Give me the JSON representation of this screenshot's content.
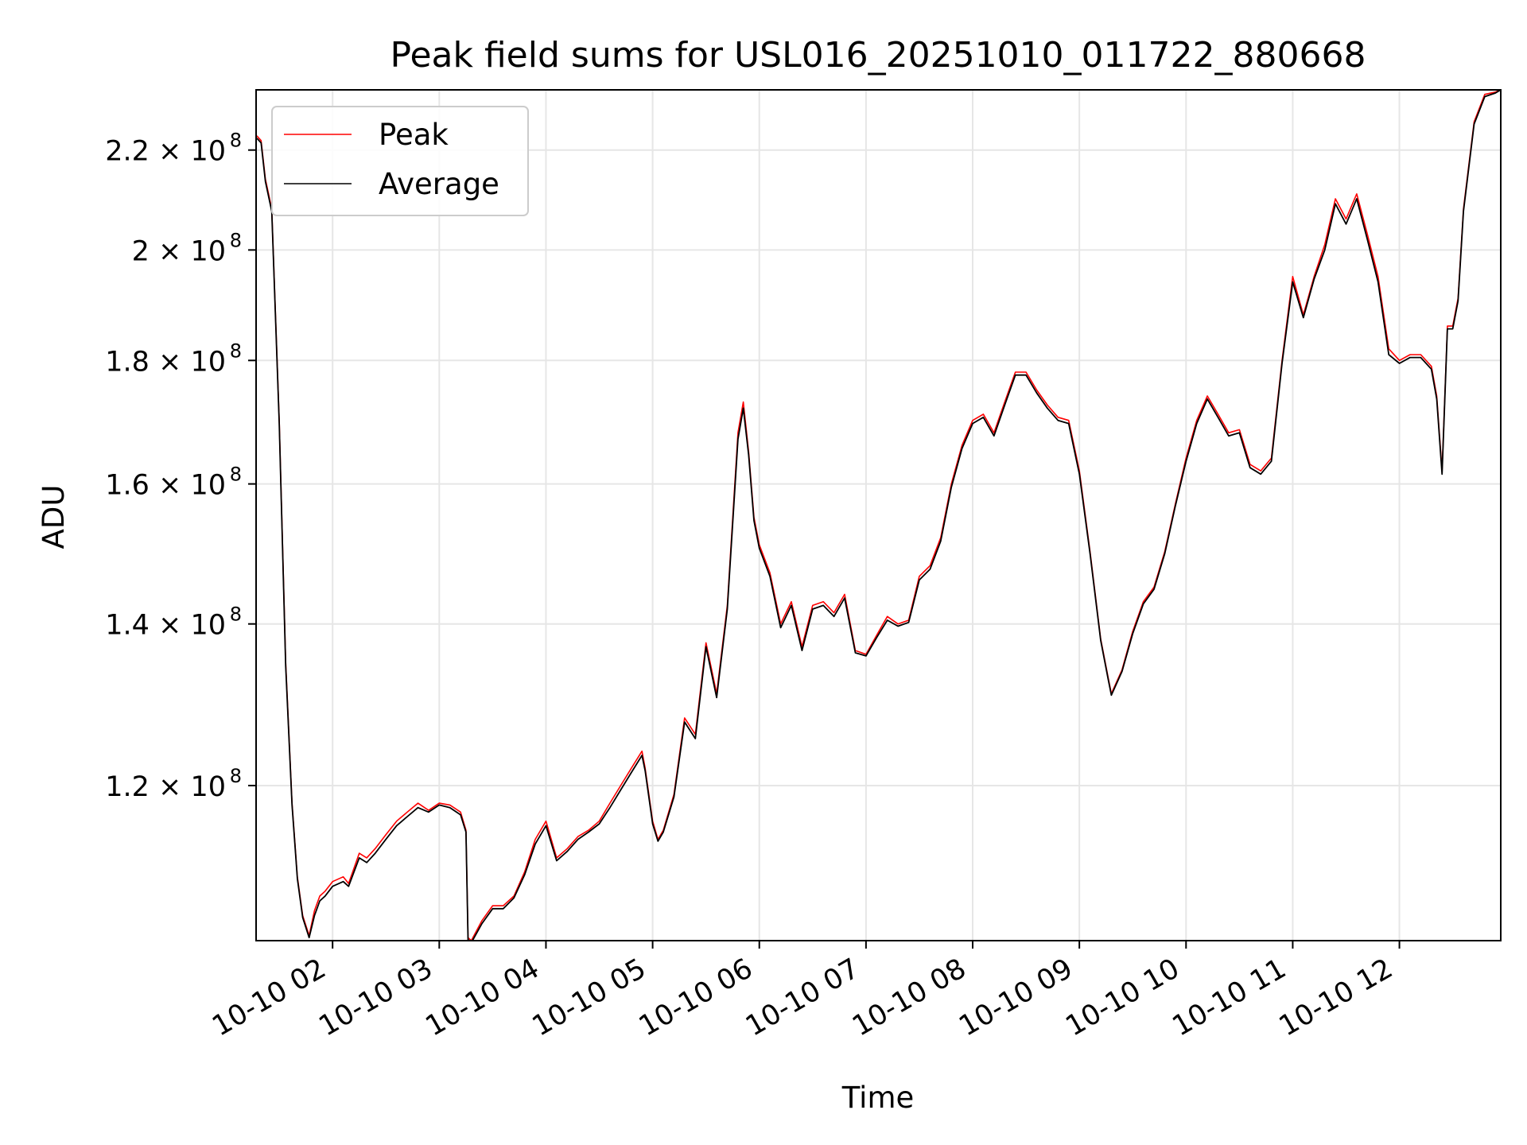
{
  "chart_data": {
    "type": "line",
    "title": "Peak field sums for USL016_20251010_011722_880668",
    "xlabel": "Time",
    "ylabel": "ADU",
    "yscale": "log",
    "grid": true,
    "legend_position": "upper-left",
    "xlim": [
      1.283,
      12.95
    ],
    "ylim": [
      103500000,
      233000000
    ],
    "x_ticks": [
      {
        "value": 2,
        "label": "10-10 02"
      },
      {
        "value": 3,
        "label": "10-10 03"
      },
      {
        "value": 4,
        "label": "10-10 04"
      },
      {
        "value": 5,
        "label": "10-10 05"
      },
      {
        "value": 6,
        "label": "10-10 06"
      },
      {
        "value": 7,
        "label": "10-10 07"
      },
      {
        "value": 8,
        "label": "10-10 08"
      },
      {
        "value": 9,
        "label": "10-10 09"
      },
      {
        "value": 10,
        "label": "10-10 10"
      },
      {
        "value": 11,
        "label": "10-10 11"
      },
      {
        "value": 12,
        "label": "10-10 12"
      }
    ],
    "y_ticks": [
      {
        "value": 120000000,
        "mantissa": "1.2",
        "exponent": "8"
      },
      {
        "value": 140000000,
        "mantissa": "1.4",
        "exponent": "8"
      },
      {
        "value": 160000000,
        "mantissa": "1.6",
        "exponent": "8"
      },
      {
        "value": 180000000,
        "mantissa": "1.8",
        "exponent": "8"
      },
      {
        "value": 200000000,
        "mantissa": "2",
        "exponent": "8"
      },
      {
        "value": 220000000,
        "mantissa": "2.2",
        "exponent": "8"
      }
    ],
    "x_unit": "hours (2025-10-10)",
    "series": [
      {
        "name": "Peak",
        "color": "#ff0000",
        "x": [
          1.29,
          1.33,
          1.37,
          1.43,
          1.5,
          1.56,
          1.62,
          1.67,
          1.72,
          1.78,
          1.83,
          1.88,
          1.93,
          2.0,
          2.1,
          2.15,
          2.25,
          2.32,
          2.4,
          2.5,
          2.6,
          2.7,
          2.8,
          2.9,
          3.0,
          3.1,
          3.2,
          3.25,
          3.27,
          3.3,
          3.4,
          3.5,
          3.6,
          3.7,
          3.8,
          3.9,
          4.0,
          4.1,
          4.2,
          4.3,
          4.4,
          4.5,
          4.6,
          4.7,
          4.8,
          4.9,
          4.93,
          5.0,
          5.05,
          5.1,
          5.2,
          5.3,
          5.4,
          5.5,
          5.6,
          5.7,
          5.8,
          5.85,
          5.9,
          5.95,
          6.0,
          6.1,
          6.2,
          6.3,
          6.4,
          6.5,
          6.6,
          6.7,
          6.8,
          6.9,
          7.0,
          7.1,
          7.2,
          7.3,
          7.4,
          7.5,
          7.6,
          7.7,
          7.8,
          7.9,
          8.0,
          8.1,
          8.2,
          8.3,
          8.4,
          8.5,
          8.6,
          8.7,
          8.8,
          8.9,
          9.0,
          9.1,
          9.2,
          9.27,
          9.3,
          9.4,
          9.5,
          9.6,
          9.7,
          9.8,
          9.9,
          10.0,
          10.1,
          10.2,
          10.3,
          10.4,
          10.5,
          10.6,
          10.7,
          10.8,
          10.9,
          11.0,
          11.1,
          11.2,
          11.3,
          11.4,
          11.5,
          11.6,
          11.7,
          11.8,
          11.9,
          12.0,
          12.1,
          12.2,
          12.3,
          12.35,
          12.4,
          12.45,
          12.5,
          12.55,
          12.6,
          12.7,
          12.8,
          12.9,
          12.95
        ],
        "values": [
          223000000,
          222000000,
          214000000,
          208000000,
          170000000,
          135000000,
          118000000,
          110000000,
          106000000,
          104000000,
          106500000,
          108000000,
          108500000,
          109500000,
          110000000,
          109300000,
          112500000,
          112000000,
          113000000,
          114500000,
          116000000,
          117000000,
          118000000,
          117200000,
          118000000,
          117800000,
          117000000,
          115000000,
          103800000,
          103500000,
          105500000,
          107000000,
          107000000,
          108000000,
          110500000,
          114000000,
          116000000,
          112000000,
          113000000,
          114300000,
          115000000,
          116000000,
          118000000,
          120000000,
          122000000,
          124000000,
          122000000,
          116000000,
          114000000,
          115000000,
          119000000,
          128000000,
          126000000,
          137500000,
          131000000,
          142500000,
          168000000,
          173000000,
          165000000,
          155000000,
          151000000,
          147000000,
          140000000,
          143000000,
          137000000,
          142500000,
          143000000,
          141500000,
          144000000,
          136500000,
          136000000,
          138500000,
          141000000,
          140000000,
          140500000,
          146500000,
          148000000,
          152000000,
          160000000,
          166000000,
          170000000,
          171000000,
          168000000,
          173000000,
          178000000,
          178000000,
          175000000,
          172500000,
          170500000,
          170000000,
          162000000,
          150000000,
          138000000,
          133000000,
          131000000,
          134000000,
          139000000,
          143000000,
          145000000,
          150000000,
          157000000,
          164000000,
          170000000,
          174000000,
          171000000,
          168000000,
          168500000,
          163000000,
          162000000,
          164000000,
          180000000,
          195000000,
          188000000,
          195000000,
          201000000,
          210000000,
          206000000,
          211000000,
          203000000,
          195000000,
          182000000,
          180000000,
          181000000,
          181000000,
          179000000,
          174000000,
          162000000,
          186000000,
          186000000,
          191000000,
          208000000,
          226000000,
          232000000,
          232500000,
          233000000
        ]
      },
      {
        "name": "Average",
        "color": "#000000",
        "x": [
          1.29,
          1.33,
          1.37,
          1.43,
          1.5,
          1.56,
          1.62,
          1.67,
          1.72,
          1.78,
          1.83,
          1.88,
          1.93,
          2.0,
          2.1,
          2.15,
          2.25,
          2.32,
          2.4,
          2.5,
          2.6,
          2.7,
          2.8,
          2.9,
          3.0,
          3.1,
          3.2,
          3.25,
          3.27,
          3.3,
          3.4,
          3.5,
          3.6,
          3.7,
          3.8,
          3.9,
          4.0,
          4.1,
          4.2,
          4.3,
          4.4,
          4.5,
          4.6,
          4.7,
          4.8,
          4.9,
          4.93,
          5.0,
          5.05,
          5.1,
          5.2,
          5.3,
          5.4,
          5.5,
          5.6,
          5.7,
          5.8,
          5.85,
          5.9,
          5.95,
          6.0,
          6.1,
          6.2,
          6.3,
          6.4,
          6.5,
          6.6,
          6.7,
          6.8,
          6.9,
          7.0,
          7.1,
          7.2,
          7.3,
          7.4,
          7.5,
          7.6,
          7.7,
          7.8,
          7.9,
          8.0,
          8.1,
          8.2,
          8.3,
          8.4,
          8.5,
          8.6,
          8.7,
          8.8,
          8.9,
          9.0,
          9.1,
          9.2,
          9.27,
          9.3,
          9.4,
          9.5,
          9.6,
          9.7,
          9.8,
          9.9,
          10.0,
          10.1,
          10.2,
          10.3,
          10.4,
          10.5,
          10.6,
          10.7,
          10.8,
          10.9,
          11.0,
          11.1,
          11.2,
          11.3,
          11.4,
          11.5,
          11.6,
          11.7,
          11.8,
          11.9,
          12.0,
          12.1,
          12.2,
          12.3,
          12.35,
          12.4,
          12.45,
          12.5,
          12.55,
          12.6,
          12.7,
          12.8,
          12.9,
          12.95
        ],
        "values": [
          222500000,
          221500000,
          213500000,
          207500000,
          169500000,
          134500000,
          117800000,
          109800000,
          105800000,
          103800000,
          106000000,
          107500000,
          108000000,
          109000000,
          109500000,
          109000000,
          112000000,
          111500000,
          112500000,
          114000000,
          115500000,
          116500000,
          117500000,
          117000000,
          117800000,
          117500000,
          116700000,
          114800000,
          103600000,
          103300000,
          105200000,
          106700000,
          106700000,
          107800000,
          110200000,
          113500000,
          115500000,
          111700000,
          112700000,
          114000000,
          114800000,
          115700000,
          117500000,
          119500000,
          121500000,
          123500000,
          121700000,
          115700000,
          113800000,
          114800000,
          118700000,
          127500000,
          125500000,
          137000000,
          130500000,
          142000000,
          167000000,
          172000000,
          164500000,
          154500000,
          150500000,
          146500000,
          139500000,
          142500000,
          136500000,
          142000000,
          142500000,
          141000000,
          143500000,
          136200000,
          135800000,
          138200000,
          140500000,
          139700000,
          140200000,
          146000000,
          147500000,
          151500000,
          159500000,
          165500000,
          169500000,
          170500000,
          167500000,
          172500000,
          177500000,
          177500000,
          174500000,
          172000000,
          170000000,
          169500000,
          161500000,
          149700000,
          137800000,
          132800000,
          130800000,
          133800000,
          138700000,
          142700000,
          144700000,
          149700000,
          156700000,
          163500000,
          169500000,
          173500000,
          170500000,
          167500000,
          168000000,
          162500000,
          161500000,
          163500000,
          179500000,
          194000000,
          187500000,
          194500000,
          200000000,
          209000000,
          205000000,
          210000000,
          202000000,
          194000000,
          181000000,
          179500000,
          180500000,
          180500000,
          178500000,
          173500000,
          161500000,
          185500000,
          185500000,
          190500000,
          207500000,
          225500000,
          231500000,
          232300000,
          233000000
        ]
      }
    ]
  }
}
